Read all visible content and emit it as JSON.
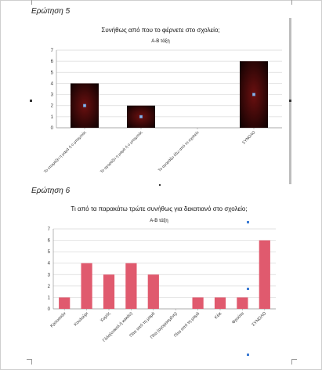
{
  "page": {
    "question5": "Ερώτηση 5",
    "question6": "Ερώτηση 6"
  },
  "chart1": {
    "title": "Συνήθως από που το φέρνετε στο σχολείο;",
    "subtitle": "Α-Β τάξη"
  },
  "chart2": {
    "title": "Τι από τα παρακάτω τρώτε συνήθως για δεκατιανό στο σχολείο;",
    "subtitle": "Α-Β τάξη"
  },
  "colors": {
    "chart1_bar_center": "#6b1010",
    "chart1_bar_edge": "#140202",
    "chart2_bar": "#e05a6e",
    "grid": "#d9d9d9"
  },
  "chart_data": [
    {
      "type": "bar",
      "title": "Συνήθως από που το φέρνετε στο σχολείο;",
      "subtitle": "Α-Β τάξη",
      "categories": [
        "Το ετοιμάζει η μαμά ή ο μπαμπάς",
        "Το αγοράζει η μαμά ή ο μπαμπάς",
        "Το αγοράζω έξω από το σχολείο",
        "ΣΥΝΟΛΟ"
      ],
      "values": [
        4,
        2,
        0,
        6
      ],
      "ylim": [
        0,
        7
      ],
      "yticks": [
        "0",
        "1",
        "2",
        "3",
        "4",
        "5",
        "6",
        "7"
      ],
      "grid": true
    },
    {
      "type": "bar",
      "title": "Τι από τα παρακάτω τρώτε συνήθως για δεκατιανό στο σχολείο;",
      "subtitle": "Α-Β τάξη",
      "categories": [
        "Κρουασάν",
        "Κουλούρι",
        "Χυμός",
        "Γάλα(σοκολ.ή κακάο)",
        "Πίτα από τη μαμά",
        "Πίτα (αγορασμένη)",
        "Πίτα από τη μαμά",
        "Κέικ",
        "Φρούτα",
        "ΣΥΝΟΛΟ"
      ],
      "values": [
        1,
        4,
        3,
        4,
        3,
        0,
        1,
        1,
        1,
        6
      ],
      "ylim": [
        0,
        7
      ],
      "yticks": [
        "0",
        "1",
        "2",
        "3",
        "4",
        "5",
        "6",
        "7"
      ],
      "grid": true
    }
  ]
}
